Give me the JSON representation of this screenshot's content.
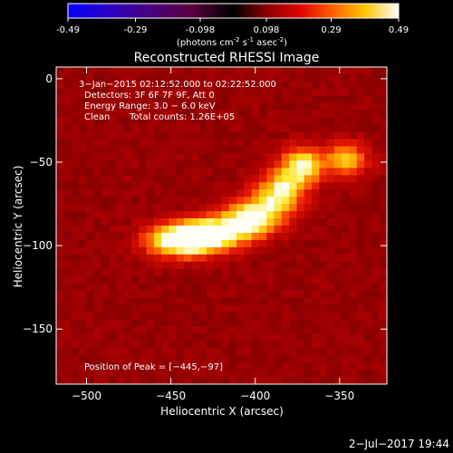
{
  "chart_data": {
    "type": "heatmap",
    "title": "Reconstructed RHESSI Image",
    "colorbar": {
      "ticks": [
        "-0.49",
        "-0.29",
        "-0.098",
        "0.098",
        "0.29",
        "0.49"
      ],
      "range": [
        -0.49,
        0.49
      ],
      "label_main": "(photons cm",
      "label_exp1": "-2",
      "label_mid": " s",
      "label_exp2": "-1",
      "label_mid2": " asec",
      "label_exp3": "-2",
      "label_end": ")"
    },
    "xlabel": "Heliocentric X (arcsec)",
    "ylabel": "Heliocentric Y (arcsec)",
    "xlim": [
      -518,
      -322
    ],
    "ylim": [
      -183,
      7
    ],
    "xticks": [
      {
        "v": -500,
        "label": "−500"
      },
      {
        "v": -450,
        "label": "−450"
      },
      {
        "v": -400,
        "label": "−400"
      },
      {
        "v": -350,
        "label": "−350"
      }
    ],
    "yticks": [
      {
        "v": 0,
        "label": "0"
      },
      {
        "v": -50,
        "label": "−50"
      },
      {
        "v": -100,
        "label": "−100"
      },
      {
        "v": -150,
        "label": "−150"
      }
    ],
    "annotations": {
      "time": "3−Jan−2015 02:12:52.000 to 02:22:52.000",
      "detectors": "Detectors: 3F 6F 7F 9F, Att 0",
      "energy": "Energy Range: 3.0 − 6.0 keV",
      "clean": "Clean",
      "counts": "Total counts: 1.26E+05",
      "peak": "Position of Peak = [−445,−97]"
    },
    "sources": [
      {
        "x": -445,
        "y": -97,
        "sx": 14,
        "sy": 7,
        "amp": 1.0
      },
      {
        "x": -425,
        "y": -93,
        "sx": 14,
        "sy": 7,
        "amp": 0.85
      },
      {
        "x": -402,
        "y": -83,
        "sx": 12,
        "sy": 8,
        "amp": 0.9
      },
      {
        "x": -385,
        "y": -68,
        "sx": 10,
        "sy": 9,
        "amp": 0.75
      },
      {
        "x": -372,
        "y": -52,
        "sx": 9,
        "sy": 8,
        "amp": 0.8
      },
      {
        "x": -346,
        "y": -48,
        "sx": 9,
        "sy": 7,
        "amp": 0.65
      }
    ],
    "background_level": 0.45
  },
  "footer": {
    "date": "2−Jul−2017 19:44"
  }
}
